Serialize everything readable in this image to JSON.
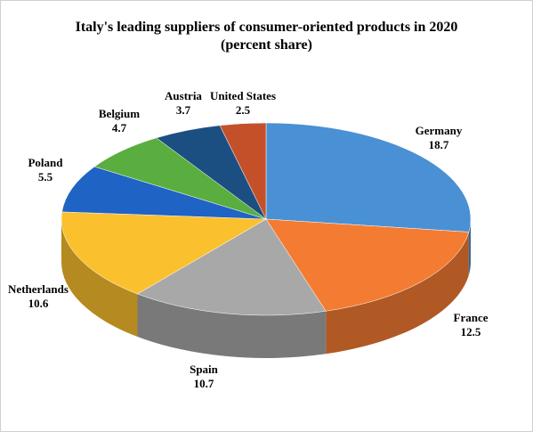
{
  "chart_data": {
    "type": "pie3d",
    "title": "Italy's leading suppliers of consumer-oriented products in 2020 (percent share)",
    "categories": [
      "Germany",
      "France",
      "Spain",
      "Netherlands",
      "Poland",
      "Belgium",
      "Austria",
      "United States"
    ],
    "values": [
      18.7,
      12.5,
      10.7,
      10.6,
      5.5,
      4.7,
      3.7,
      2.5
    ],
    "colors": [
      "#4a90d4",
      "#f47c32",
      "#a8a8a8",
      "#fbc02d",
      "#1f63c4",
      "#5aad3f",
      "#1b4f82",
      "#c4502a"
    ]
  }
}
